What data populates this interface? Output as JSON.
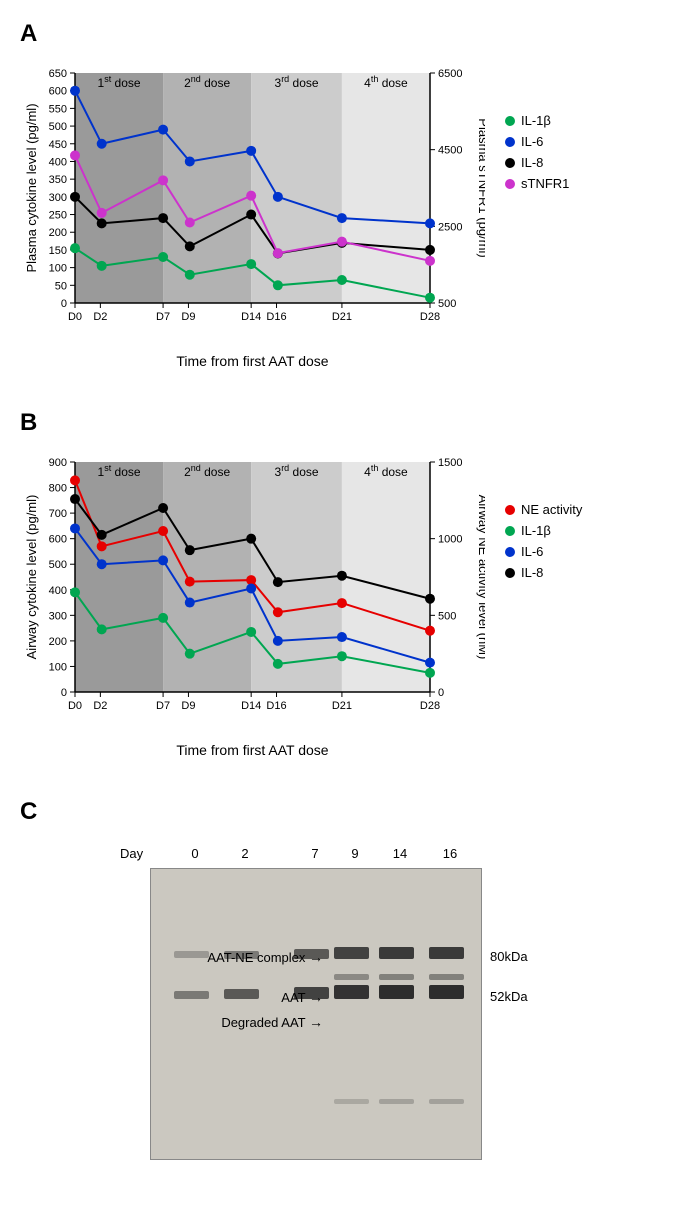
{
  "panelA": {
    "label": "A",
    "type": "line",
    "xlabel": "Time from first AAT dose",
    "ylabel_left": "Plasma cytokine level (pg/ml)",
    "ylabel_right": "Plasma sTNFR1 (pg/ml)",
    "x_ticks": [
      "D0",
      "D2",
      "D7",
      "D9",
      "D14",
      "D16",
      "D21",
      "D28"
    ],
    "x_positions": [
      0,
      0.1,
      0.33,
      0.43,
      0.66,
      0.76,
      1.0,
      1.33
    ],
    "x_tick_positions": [
      0,
      0.095,
      0.33,
      0.425,
      0.66,
      0.755,
      1.0,
      1.33
    ],
    "left_ylim": [
      0,
      650
    ],
    "left_ytick_step": 50,
    "right_ylim": [
      500,
      6500
    ],
    "right_yticks": [
      500,
      2500,
      4500,
      6500
    ],
    "dose_regions": [
      {
        "label": "1st dose",
        "start": 0,
        "end": 0.33,
        "color": "#9a9a9a"
      },
      {
        "label": "2nd dose",
        "start": 0.33,
        "end": 0.66,
        "color": "#b2b2b2"
      },
      {
        "label": "3rd dose",
        "start": 0.66,
        "end": 1.0,
        "color": "#cccccc"
      },
      {
        "label": "4th dose",
        "start": 1.0,
        "end": 1.33,
        "color": "#e6e6e6"
      }
    ],
    "series": [
      {
        "name": "IL-1β",
        "color": "#00a651",
        "axis": "left",
        "values": [
          155,
          105,
          130,
          80,
          110,
          50,
          65,
          15
        ]
      },
      {
        "name": "IL-6",
        "color": "#0033cc",
        "axis": "left",
        "values": [
          600,
          450,
          490,
          400,
          430,
          300,
          240,
          225
        ]
      },
      {
        "name": "IL-8",
        "color": "#000000",
        "axis": "left",
        "values": [
          300,
          225,
          240,
          160,
          250,
          140,
          170,
          150
        ]
      },
      {
        "name": "sTNFR1",
        "color": "#cc33cc",
        "axis": "right",
        "values": [
          4350,
          2850,
          3700,
          2600,
          3300,
          1800,
          2100,
          1600
        ]
      }
    ],
    "legend_items": [
      {
        "label": "IL-1β",
        "color": "#00a651"
      },
      {
        "label": "IL-6",
        "color": "#0033cc"
      },
      {
        "label": "IL-8",
        "color": "#000000"
      },
      {
        "label": "sTNFR1",
        "color": "#cc33cc"
      }
    ],
    "font_size_axis": 13,
    "font_size_dose": 12,
    "marker_radius": 5,
    "line_width": 2,
    "background_color": "#ffffff"
  },
  "panelB": {
    "label": "B",
    "type": "line",
    "xlabel": "Time from first AAT dose",
    "ylabel_left": "Airway cytokine level (pg/ml)",
    "ylabel_right": "Airway NE activity level (nM)",
    "x_ticks": [
      "D0",
      "D2",
      "D7",
      "D9",
      "D14",
      "D16",
      "D21",
      "D28"
    ],
    "x_positions": [
      0,
      0.1,
      0.33,
      0.43,
      0.66,
      0.76,
      1.0,
      1.33
    ],
    "x_tick_positions": [
      0,
      0.095,
      0.33,
      0.425,
      0.66,
      0.755,
      1.0,
      1.33
    ],
    "left_ylim": [
      0,
      900
    ],
    "left_ytick_step": 100,
    "right_ylim": [
      0,
      1500
    ],
    "right_yticks": [
      0,
      500,
      1000,
      1500
    ],
    "dose_regions": [
      {
        "label": "1st dose",
        "start": 0,
        "end": 0.33,
        "color": "#9a9a9a"
      },
      {
        "label": "2nd dose",
        "start": 0.33,
        "end": 0.66,
        "color": "#b2b2b2"
      },
      {
        "label": "3rd dose",
        "start": 0.66,
        "end": 1.0,
        "color": "#cccccc"
      },
      {
        "label": "4th dose",
        "start": 1.0,
        "end": 1.33,
        "color": "#e6e6e6"
      }
    ],
    "series": [
      {
        "name": "NE activity",
        "color": "#e60000",
        "axis": "right",
        "values": [
          1380,
          950,
          1050,
          720,
          730,
          520,
          580,
          400
        ]
      },
      {
        "name": "IL-1β",
        "color": "#00a651",
        "axis": "left",
        "values": [
          390,
          245,
          290,
          150,
          235,
          110,
          140,
          75
        ]
      },
      {
        "name": "IL-6",
        "color": "#0033cc",
        "axis": "left",
        "values": [
          640,
          500,
          515,
          350,
          405,
          200,
          215,
          115
        ]
      },
      {
        "name": "IL-8",
        "color": "#000000",
        "axis": "left",
        "values": [
          755,
          615,
          720,
          555,
          600,
          430,
          455,
          365
        ]
      }
    ],
    "legend_items": [
      {
        "label": "NE activity",
        "color": "#e60000"
      },
      {
        "label": "IL-1β",
        "color": "#00a651"
      },
      {
        "label": "IL-6",
        "color": "#0033cc"
      },
      {
        "label": "IL-8",
        "color": "#000000"
      }
    ],
    "font_size_axis": 13,
    "font_size_dose": 12,
    "marker_radius": 5,
    "line_width": 2,
    "background_color": "#ffffff"
  },
  "panelC": {
    "label": "C",
    "type": "gel-blot",
    "day_header": "Day",
    "days": [
      "0",
      "2",
      "7",
      "9",
      "14",
      "16"
    ],
    "day_positions": [
      40,
      90,
      160,
      200,
      245,
      295
    ],
    "left_labels": [
      {
        "text": "AAT-NE complex",
        "y": 85
      },
      {
        "text": "AAT",
        "y": 125
      },
      {
        "text": "Degraded AAT",
        "y": 150
      }
    ],
    "right_labels": [
      {
        "text": "80kDa",
        "y": 85
      },
      {
        "text": "52kDa",
        "y": 125
      }
    ],
    "lane_width": 35,
    "bands": [
      {
        "lane": 0,
        "y": 82,
        "intensity": 0.3,
        "h": 7
      },
      {
        "lane": 1,
        "y": 82,
        "intensity": 0.5,
        "h": 8
      },
      {
        "lane": 2,
        "y": 80,
        "intensity": 0.7,
        "h": 10
      },
      {
        "lane": 3,
        "y": 78,
        "intensity": 0.85,
        "h": 12
      },
      {
        "lane": 4,
        "y": 78,
        "intensity": 0.9,
        "h": 12
      },
      {
        "lane": 5,
        "y": 78,
        "intensity": 0.9,
        "h": 12
      },
      {
        "lane": 0,
        "y": 122,
        "intensity": 0.5,
        "h": 8
      },
      {
        "lane": 1,
        "y": 120,
        "intensity": 0.7,
        "h": 10
      },
      {
        "lane": 2,
        "y": 118,
        "intensity": 0.85,
        "h": 12
      },
      {
        "lane": 3,
        "y": 116,
        "intensity": 0.95,
        "h": 14
      },
      {
        "lane": 4,
        "y": 116,
        "intensity": 0.98,
        "h": 14
      },
      {
        "lane": 5,
        "y": 116,
        "intensity": 0.98,
        "h": 14
      },
      {
        "lane": 3,
        "y": 105,
        "intensity": 0.4,
        "h": 6
      },
      {
        "lane": 4,
        "y": 105,
        "intensity": 0.45,
        "h": 6
      },
      {
        "lane": 5,
        "y": 105,
        "intensity": 0.45,
        "h": 6
      },
      {
        "lane": 3,
        "y": 230,
        "intensity": 0.2,
        "h": 5
      },
      {
        "lane": 4,
        "y": 230,
        "intensity": 0.25,
        "h": 5
      },
      {
        "lane": 5,
        "y": 230,
        "intensity": 0.25,
        "h": 5
      }
    ],
    "gel_bg_color": "#cbc8c0",
    "band_color": "#2a2a2a"
  }
}
